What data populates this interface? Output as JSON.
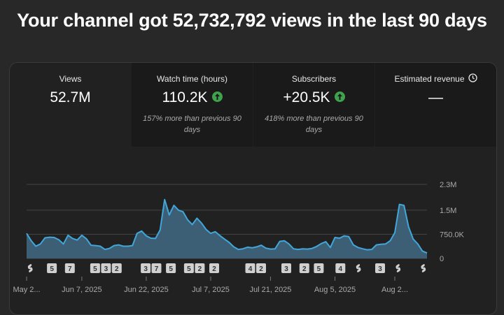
{
  "headline": "Your channel got 52,732,792 views in the last 90 days",
  "stats": [
    {
      "label": "Views",
      "value": "52.7M",
      "note": ""
    },
    {
      "label": "Watch time (hours)",
      "value": "110.2K",
      "note": "157% more than previous 90 days"
    },
    {
      "label": "Subscribers",
      "value": "+20.5K",
      "note": "418% more than previous 90 days"
    },
    {
      "label": "Estimated revenue",
      "value": "—",
      "note": ""
    }
  ],
  "chart_data": {
    "type": "area",
    "series": [
      {
        "name": "Views",
        "values": [
          0.78,
          0.55,
          0.38,
          0.45,
          0.64,
          0.66,
          0.65,
          0.58,
          0.45,
          0.72,
          0.62,
          0.57,
          0.72,
          0.61,
          0.41,
          0.4,
          0.38,
          0.28,
          0.31,
          0.4,
          0.42,
          0.38,
          0.38,
          0.4,
          0.78,
          0.85,
          0.7,
          0.63,
          0.62,
          0.88,
          1.83,
          1.35,
          1.65,
          1.5,
          1.45,
          1.2,
          1.05,
          1.25,
          1.1,
          0.9,
          0.78,
          0.83,
          0.71,
          0.6,
          0.5,
          0.36,
          0.28,
          0.3,
          0.35,
          0.33,
          0.36,
          0.41,
          0.32,
          0.29,
          0.3,
          0.53,
          0.55,
          0.45,
          0.3,
          0.28,
          0.3,
          0.29,
          0.31,
          0.37,
          0.46,
          0.52,
          0.34,
          0.65,
          0.63,
          0.7,
          0.68,
          0.42,
          0.34,
          0.3,
          0.27,
          0.28,
          0.42,
          0.44,
          0.45,
          0.55,
          0.8,
          1.68,
          1.65,
          0.98,
          0.6,
          0.45,
          0.23,
          0.17
        ]
      }
    ],
    "y_ticks": [
      "2.3M",
      "1.5M",
      "750.0K",
      "0"
    ],
    "y_tick_values": [
      2300000,
      1500000,
      750000,
      0
    ],
    "ylim": [
      0,
      2300000
    ],
    "x_ticks": [
      "May 2...",
      "Jun 7, 2025",
      "Jun 22, 2025",
      "Jul 7, 2025",
      "Jul 21, 2025",
      "Aug 5, 2025",
      "Aug 2..."
    ],
    "x_tick_index": [
      0,
      12,
      26,
      40,
      53,
      67,
      80
    ],
    "markers": [
      "shorts",
      "5",
      "7",
      "5",
      "3",
      "2",
      "3",
      "7",
      "5",
      "5",
      "2",
      "2",
      "4",
      "2",
      "3",
      "2",
      "5",
      "4",
      "shorts",
      "3",
      "shorts",
      "shorts"
    ],
    "marker_index": [
      1,
      7,
      12,
      19,
      22,
      25,
      33,
      36,
      40,
      45,
      48,
      52,
      62,
      65,
      72,
      77,
      81,
      87,
      92,
      98,
      103,
      110
    ],
    "colors": {
      "line": "#41a6d9",
      "fill": "#3d5f75",
      "grid": "#444444",
      "marker": "#d0d0d0"
    }
  }
}
